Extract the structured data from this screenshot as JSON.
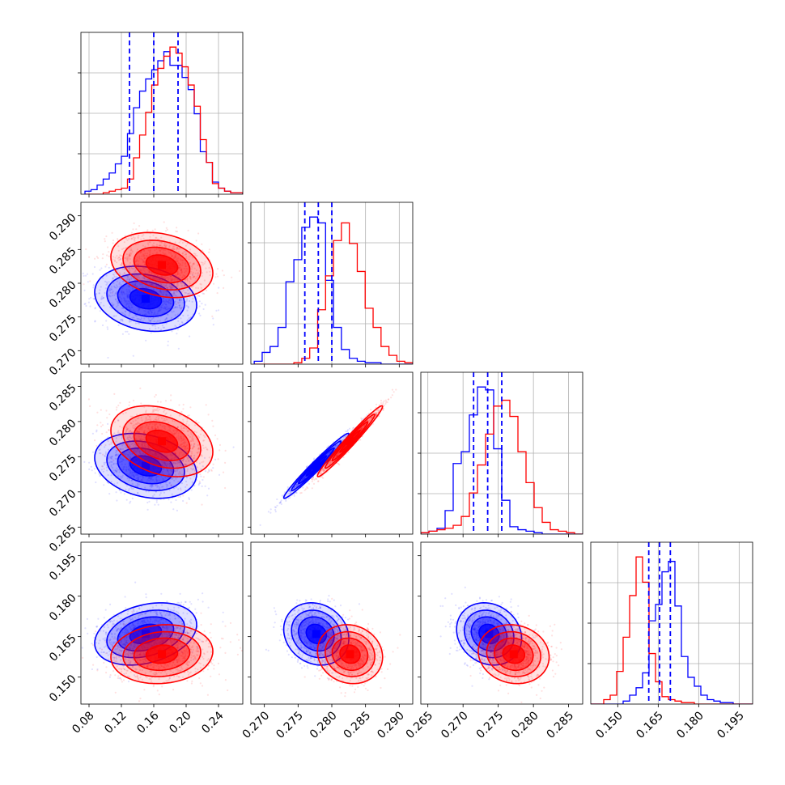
{
  "chart_data": {
    "type": "corner",
    "colors": {
      "blue": "#0000ff",
      "red": "#ff0000",
      "grid": "#b0b0b0"
    },
    "params": [
      {
        "range": [
          0.07,
          0.27
        ],
        "ticks": [
          0.08,
          0.12,
          0.16,
          0.2,
          0.24
        ],
        "tick_labels": [
          "0.08",
          "0.12",
          "0.16",
          "0.20",
          "0.24"
        ]
      },
      {
        "range": [
          0.268,
          0.292
        ],
        "ticks": [
          0.27,
          0.275,
          0.28,
          0.285,
          0.29
        ],
        "tick_labels": [
          "0.270",
          "0.275",
          "0.280",
          "0.285",
          "0.290"
        ]
      },
      {
        "range": [
          0.264,
          0.287
        ],
        "ticks": [
          0.265,
          0.27,
          0.275,
          0.28,
          0.285
        ],
        "tick_labels": [
          "0.265",
          "0.270",
          "0.275",
          "0.280",
          "0.285"
        ]
      },
      {
        "range": [
          0.14,
          0.2
        ],
        "ticks": [
          0.15,
          0.165,
          0.18,
          0.195
        ],
        "tick_labels": [
          "0.150",
          "0.165",
          "0.180",
          "0.195"
        ]
      }
    ],
    "series": [
      {
        "color": "#0000ff",
        "quantiles": [
          [
            0.13,
            0.16,
            0.19
          ],
          [
            0.276,
            0.278,
            0.28
          ],
          [
            0.2715,
            0.2735,
            0.2755
          ],
          [
            0.1615,
            0.1655,
            0.1695
          ]
        ],
        "hist": [
          {
            "bins": [
              0.075,
              0.27
            ],
            "counts": [
              2,
              3,
              6,
              10,
              14,
              20,
              25,
              40,
              57,
              68,
              76,
              82,
              88,
              94,
              85,
              85,
              77,
              69,
              53,
              28,
              21,
              8,
              4,
              2,
              1,
              1
            ]
          },
          {
            "bins": [
              0.2685,
              0.292
            ],
            "counts": [
              2,
              8,
              12,
              25,
              56,
              71,
              93,
              100,
              96,
              57,
              25,
              10,
              4,
              2,
              1,
              1,
              0,
              0,
              0,
              0
            ]
          },
          {
            "bins": [
              0.264,
              0.287
            ],
            "counts": [
              1,
              2,
              4,
              16,
              48,
              56,
              81,
              100,
              98,
              58,
              23,
              5,
              3,
              2,
              1,
              0,
              0,
              0,
              0,
              0
            ]
          },
          {
            "bins": [
              0.14,
              0.2
            ],
            "counts": [
              0,
              0,
              0,
              0,
              0,
              2,
              6,
              11,
              21,
              56,
              67,
              89,
              96,
              66,
              32,
              18,
              12,
              6,
              3,
              2,
              1,
              1,
              0,
              0,
              0
            ]
          }
        ],
        "mean": [
          0.15,
          0.2777,
          0.2737,
          0.166
        ],
        "sd": [
          0.03,
          0.0023,
          0.0022,
          0.0055
        ],
        "corr": [
          [
            1,
            -0.2,
            -0.25,
            0.3
          ],
          [
            -0.2,
            1,
            0.98,
            -0.15
          ],
          [
            -0.25,
            0.98,
            1,
            -0.15
          ],
          [
            0.3,
            -0.15,
            -0.15,
            1
          ]
        ]
      },
      {
        "color": "#ff0000",
        "hist": [
          {
            "bins": [
              0.075,
              0.27
            ],
            "counts": [
              0,
              0,
              0,
              1,
              2,
              3,
              4,
              10,
              24,
              39,
              54,
              72,
              83,
              91,
              97,
              93,
              84,
              72,
              58,
              36,
              21,
              7,
              4,
              2,
              1,
              1
            ]
          },
          {
            "bins": [
              0.2685,
              0.292
            ],
            "counts": [
              0,
              0,
              0,
              0,
              0,
              1,
              4,
              11,
              37,
              60,
              84,
              96,
              82,
              63,
              38,
              25,
              12,
              6,
              2,
              1
            ]
          },
          {
            "bins": [
              0.264,
              0.287
            ],
            "counts": [
              1,
              2,
              3,
              4,
              6,
              12,
              28,
              47,
              68,
              87,
              91,
              80,
              56,
              35,
              18,
              8,
              3,
              2,
              1,
              0
            ]
          },
          {
            "bins": [
              0.14,
              0.2
            ],
            "counts": [
              0,
              0,
              3,
              6,
              22,
              45,
              73,
              99,
              82,
              34,
              15,
              5,
              3,
              2,
              1,
              1,
              0,
              0,
              0,
              0,
              0,
              0,
              0,
              0,
              0
            ]
          }
        ],
        "mean": [
          0.17,
          0.2827,
          0.2772,
          0.1585
        ],
        "sd": [
          0.03,
          0.0023,
          0.0024,
          0.0052
        ],
        "corr": [
          [
            1,
            -0.25,
            -0.3,
            0.1
          ],
          [
            -0.25,
            1,
            0.98,
            -0.1
          ],
          [
            -0.3,
            0.98,
            1,
            -0.1
          ],
          [
            0.1,
            -0.1,
            -0.1,
            1
          ]
        ]
      }
    ]
  }
}
